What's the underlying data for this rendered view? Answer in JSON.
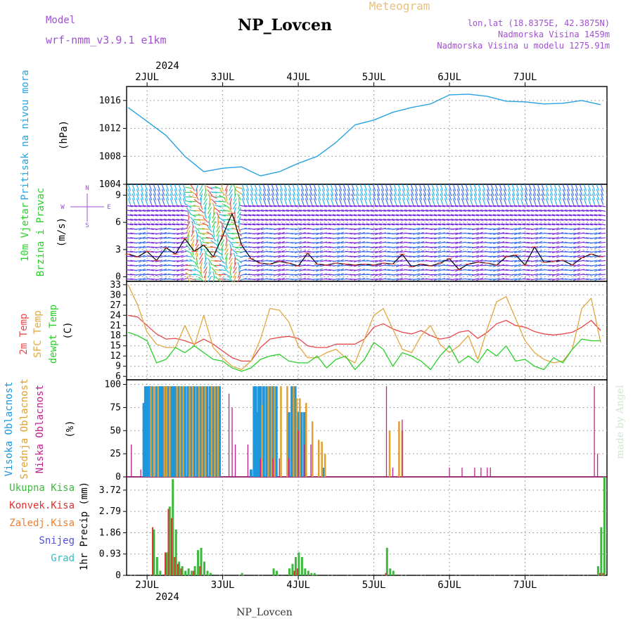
{
  "header": {
    "model_label": "Model",
    "model_name": "wrf-nmm_v3.9.1 e1km",
    "station": "NP_Lovcen",
    "meteogram": "Meteogram",
    "lonlat": "lon,lat (18.8375E, 42.3875N)",
    "altitude": "Nadmorska Visina 1459m",
    "model_altitude": "Nadmorska Visina u modelu 1275.91m",
    "footer": "NP_Lovcen",
    "watermark": "made by Angel"
  },
  "colors": {
    "pressure": "#29a3e0",
    "temp2m": "#e84848",
    "sfc": "#e0a840",
    "dewpt": "#2ad02a",
    "high_cloud": "#1e96dc",
    "mid_cloud": "#e0a030",
    "low_cloud": "#c0208c",
    "total_precip": "#3cb83c",
    "conv_precip": "#e03030",
    "freezing": "#f08030",
    "snow": "#5050e0",
    "hail": "#30c0c0"
  },
  "time_axis": {
    "year": "2024",
    "days": [
      "2JUL",
      "3JUL",
      "4JUL",
      "5JUL",
      "6JUL",
      "7JUL"
    ],
    "start_hour": -6.5,
    "end_hour": 146
  },
  "chart_data": [
    {
      "id": "pressure",
      "type": "line",
      "ylabel": "(hPa)",
      "side_labels": [
        "Pritisak na nivou mora"
      ],
      "ylim": [
        1004,
        1018
      ],
      "yticks": [
        "1016",
        "1012",
        "1008",
        "1004"
      ],
      "x": [
        -6,
        0,
        6,
        12,
        18,
        24,
        30,
        36,
        42,
        48,
        54,
        60,
        66,
        72,
        78,
        84,
        90,
        96,
        102,
        108,
        114,
        120,
        126,
        132,
        138,
        144
      ],
      "series": [
        {
          "values": [
            1015,
            1013,
            1011,
            1008,
            1005.8,
            1006.3,
            1006.5,
            1005.2,
            1005.8,
            1007,
            1008,
            1010,
            1012.5,
            1013.2,
            1014.3,
            1015,
            1015.5,
            1016.8,
            1016.9,
            1016.6,
            1015.9,
            1015.8,
            1015.5,
            1015.6,
            1016,
            1015.4
          ]
        }
      ]
    },
    {
      "id": "wind",
      "type": "line",
      "ylabel": "(m/s)",
      "side_labels": [
        "10m Vjetar",
        "Brzina i Pravac"
      ],
      "compass": [
        "N",
        "W",
        "E",
        "S"
      ],
      "ylim": [
        -0.5,
        10.2
      ],
      "yticks": [
        "9",
        "6",
        "3",
        "0"
      ],
      "x": [
        -6,
        -3,
        0,
        3,
        6,
        9,
        12,
        15,
        18,
        21,
        24,
        27,
        30,
        33,
        36,
        39,
        42,
        45,
        48,
        51,
        54,
        57,
        60,
        63,
        66,
        69,
        72,
        75,
        78,
        81,
        84,
        87,
        90,
        93,
        96,
        99,
        102,
        105,
        108,
        111,
        114,
        117,
        120,
        123,
        126,
        129,
        132,
        135,
        138,
        141,
        144
      ],
      "series": [
        {
          "values": [
            2.5,
            2.2,
            2.8,
            1.8,
            3.2,
            2.5,
            4.2,
            2.8,
            3.5,
            2.2,
            4.5,
            7.0,
            3.5,
            2.0,
            1.5,
            1.4,
            1.7,
            1.5,
            1.2,
            2.6,
            1.4,
            1.3,
            1.5,
            1.4,
            1.3,
            1.4,
            1.3,
            1.5,
            1.4,
            2.5,
            1.1,
            1.4,
            1.2,
            1.5,
            2.0,
            0.8,
            1.4,
            1.6,
            1.5,
            1.3,
            2.2,
            2.4,
            1.3,
            3.3,
            1.6,
            1.7,
            1.8,
            1.3,
            2.1,
            2.5,
            2.2
          ]
        }
      ]
    },
    {
      "id": "temperature",
      "type": "line",
      "ylabel": "(C)",
      "side_labels": [
        "2m Temp",
        "SFC Temp",
        "dewpt Temp"
      ],
      "ylim": [
        5,
        34
      ],
      "yticks": [
        "33",
        "30",
        "27",
        "24",
        "21",
        "18",
        "15",
        "12",
        "9",
        "6"
      ],
      "x": [
        -6,
        -3,
        0,
        3,
        6,
        9,
        12,
        15,
        18,
        21,
        24,
        27,
        30,
        33,
        36,
        39,
        42,
        45,
        48,
        51,
        54,
        57,
        60,
        63,
        66,
        69,
        72,
        75,
        78,
        81,
        84,
        87,
        90,
        93,
        96,
        99,
        102,
        105,
        108,
        111,
        114,
        117,
        120,
        123,
        126,
        129,
        132,
        135,
        138,
        141,
        144
      ],
      "series": [
        {
          "name": "2m Temp",
          "values": [
            24,
            23.5,
            21,
            18.5,
            17,
            17.2,
            16.5,
            15.5,
            17,
            15.5,
            13.5,
            11.5,
            10.5,
            10.5,
            14.5,
            17,
            17.5,
            17.8,
            17.2,
            15,
            14.5,
            14.5,
            15.5,
            15.5,
            15.5,
            17,
            20.5,
            21.5,
            20,
            19,
            18.5,
            19.5,
            18,
            17,
            17.5,
            19,
            19.5,
            17.2,
            19,
            21.5,
            22.5,
            21,
            20.5,
            19.2,
            18.5,
            18.2,
            18.5,
            19,
            20.5,
            22.5,
            19.5
          ]
        },
        {
          "name": "SFC Temp",
          "values": [
            33,
            27,
            19,
            15.5,
            14.5,
            14.5,
            21,
            15,
            24,
            14.5,
            11.5,
            9,
            8,
            10.5,
            17,
            26,
            25.5,
            22,
            15,
            11.5,
            11.5,
            13,
            14,
            11.5,
            10,
            17,
            24,
            26,
            20,
            14,
            13,
            18,
            21,
            15.5,
            13,
            15,
            18,
            11,
            20,
            28,
            29.5,
            23,
            16.5,
            13,
            11,
            10,
            10.5,
            14,
            26,
            29,
            16
          ]
        },
        {
          "name": "dewpt Temp",
          "values": [
            19,
            18,
            16.5,
            10,
            11,
            14.5,
            13,
            15,
            13,
            11,
            10.5,
            8.5,
            7.5,
            8.5,
            11,
            12,
            12.5,
            10.5,
            10,
            10,
            12,
            8.5,
            11,
            12,
            8,
            11,
            16,
            14,
            9,
            13,
            12,
            10.5,
            8,
            12,
            15,
            10,
            12,
            10,
            14,
            12,
            15,
            10.5,
            11,
            9,
            8,
            11.5,
            10,
            14,
            17,
            16.5,
            16.5
          ]
        }
      ]
    },
    {
      "id": "cloud",
      "type": "bar",
      "ylabel": "(%)",
      "side_labels": [
        "Visoka Oblacnost",
        "Srednja Oblacnost",
        "Niska Oblacnost"
      ],
      "ylim": [
        0,
        105
      ],
      "yticks": [
        "100",
        "75",
        "50",
        "25",
        "0"
      ],
      "series": [
        {
          "name": "Visoka Oblacnost",
          "x": [
            -1,
            -0.5,
            0,
            0.5,
            1,
            1.5,
            3,
            4,
            4.5,
            5,
            6,
            6.5,
            7,
            7.5,
            8,
            8.5,
            9,
            10,
            11,
            12,
            13,
            14,
            15,
            16,
            17,
            18,
            19,
            20,
            21,
            22,
            23,
            33,
            34,
            34.5,
            35,
            35.5,
            36,
            37,
            38,
            39,
            40,
            41,
            45,
            46,
            47,
            48,
            49,
            50,
            56
          ],
          "values": [
            80,
            98,
            98,
            98,
            98,
            98,
            98,
            98,
            98,
            98,
            98,
            98,
            98,
            98,
            98,
            98,
            98,
            98,
            98,
            98,
            98,
            98,
            98,
            98,
            98,
            98,
            98,
            98,
            98,
            98,
            98,
            8,
            98,
            98,
            70,
            98,
            98,
            98,
            98,
            98,
            98,
            98,
            70,
            98,
            98,
            70,
            70,
            70,
            10
          ]
        },
        {
          "name": "Srednja Oblacnost",
          "x": [
            1.2,
            2.2,
            3.5,
            5.5,
            6.2,
            7.2,
            9.5,
            10.5,
            11.5,
            13.5,
            14.5,
            16.5,
            17.5,
            18.5,
            20.5,
            21.5,
            22.5,
            36.5,
            38.5,
            39.5,
            40.5,
            42.5,
            44.5,
            46.5,
            47.5,
            48.5,
            50.5,
            52.5,
            54.5,
            55.5,
            56.5,
            77,
            80,
            81
          ],
          "values": [
            98,
            98,
            98,
            98,
            98,
            98,
            98,
            98,
            98,
            98,
            98,
            98,
            98,
            98,
            98,
            98,
            98,
            78,
            98,
            98,
            98,
            98,
            98,
            98,
            85,
            85,
            80,
            60,
            40,
            38,
            25,
            50,
            60,
            50
          ]
        },
        {
          "name": "Niska Oblacnost",
          "x": [
            -5,
            -2,
            26,
            27,
            28,
            32,
            36,
            40,
            42,
            45,
            48,
            50,
            52,
            76,
            78,
            81,
            96,
            100,
            104,
            106,
            108,
            109,
            142,
            143
          ],
          "values": [
            35,
            8,
            90,
            75,
            35,
            35,
            20,
            20,
            20,
            20,
            50,
            35,
            35,
            98,
            10,
            62,
            10,
            10,
            10,
            10,
            10,
            10,
            98,
            25
          ]
        }
      ]
    },
    {
      "id": "precip",
      "type": "bar",
      "ylabel": "1hr Precip (mm)",
      "side_labels": [
        "Ukupna Kisa",
        "Konvek.Kisa",
        "Zaledj.Kisa",
        "Snijeg",
        "Grad"
      ],
      "ylim": [
        0,
        4.3
      ],
      "yticks": [
        "3.72",
        "2.79",
        "1.86",
        "0.93",
        "0"
      ],
      "series": [
        {
          "name": "Ukupna Kisa",
          "x": [
            2,
            3,
            4,
            6,
            7,
            8,
            9,
            10,
            11,
            12,
            13,
            14,
            15,
            16,
            17,
            18,
            19,
            20,
            30,
            40,
            41,
            45,
            46,
            47,
            48,
            49,
            50,
            51,
            52,
            53,
            76,
            77,
            78,
            143,
            144,
            145
          ],
          "values": [
            2.0,
            0.8,
            0.2,
            1.0,
            3.0,
            4.2,
            2.0,
            0.6,
            0.4,
            0.2,
            0.3,
            0.2,
            0.4,
            1.1,
            1.2,
            0.6,
            0.2,
            0.1,
            0.1,
            0.3,
            0.2,
            0.3,
            0.5,
            0.8,
            1.0,
            0.8,
            0.3,
            0.2,
            0.1,
            0.1,
            1.2,
            0.3,
            0.2,
            0.4,
            2.1,
            4.3
          ]
        },
        {
          "name": "Konvek.Kisa",
          "x": [
            2,
            6,
            7,
            8,
            9,
            10,
            11,
            15,
            17,
            47,
            48,
            76,
            144,
            145
          ],
          "values": [
            2.1,
            1.0,
            2.9,
            2.5,
            0.8,
            0.5,
            0.3,
            0.2,
            0.4,
            0.2,
            0.3,
            0.1,
            0.1,
            0.1
          ]
        }
      ]
    }
  ]
}
